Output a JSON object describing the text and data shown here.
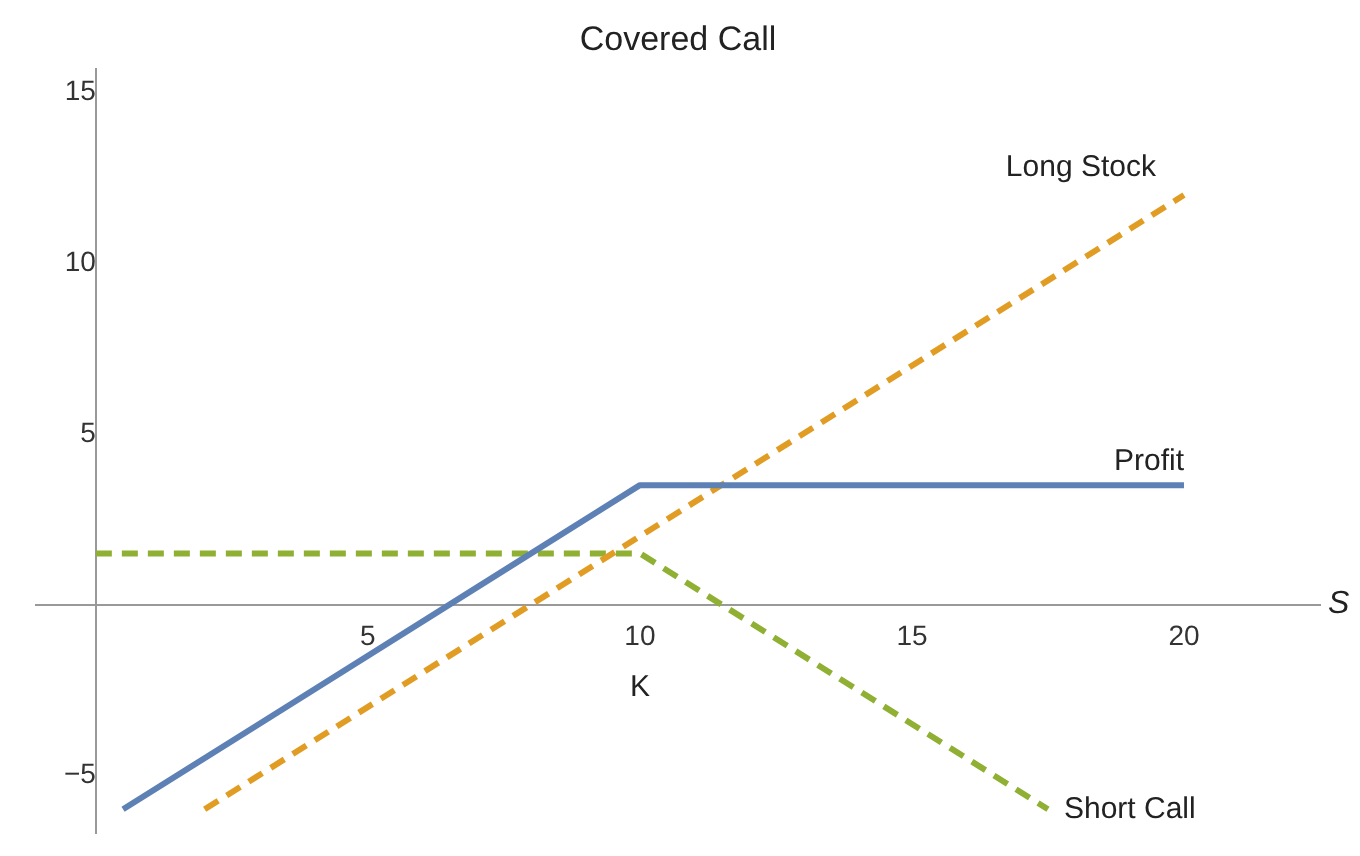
{
  "chart_data": {
    "type": "line",
    "title": "Covered Call",
    "xlabel": "S",
    "xlim": [
      -1.1,
      22.5
    ],
    "ylim": [
      -6.7,
      15.7
    ],
    "xticks": [
      5,
      10,
      15,
      20
    ],
    "yticks": [
      -5,
      5,
      10,
      15
    ],
    "grid": false,
    "legend": false,
    "marker": "none",
    "annotations": [
      "K"
    ],
    "series": [
      {
        "name": "Profit",
        "color": "#5e81b5",
        "line_style": "solid",
        "x": [
          0.5,
          10,
          20
        ],
        "values": [
          -6,
          3.5,
          3.5
        ]
      },
      {
        "name": "Long Stock",
        "color": "#e19c24",
        "line_style": "dashed",
        "x": [
          2,
          20
        ],
        "values": [
          -6,
          12
        ]
      },
      {
        "name": "Short Call",
        "color": "#8fb032",
        "line_style": "dashed",
        "x": [
          0,
          10,
          17.5
        ],
        "values": [
          1.5,
          1.5,
          -6
        ]
      }
    ]
  }
}
